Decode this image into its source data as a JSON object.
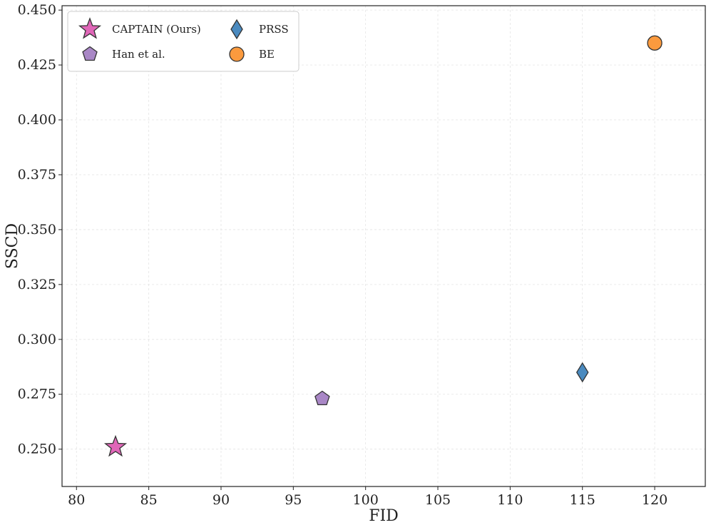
{
  "chart_data": {
    "type": "scatter",
    "title": "",
    "xlabel": "FID",
    "ylabel": "SSCD",
    "xlim": [
      79,
      123.5
    ],
    "ylim": [
      0.233,
      0.452
    ],
    "xticks": [
      80,
      85,
      90,
      95,
      100,
      105,
      110,
      115,
      120
    ],
    "yticks": [
      0.25,
      0.275,
      0.3,
      0.325,
      0.35,
      0.375,
      0.4,
      0.425,
      0.45
    ],
    "ytick_labels": [
      "0.250",
      "0.275",
      "0.300",
      "0.325",
      "0.350",
      "0.375",
      "0.400",
      "0.425",
      "0.450"
    ],
    "grid": true,
    "legend_position": "top-left",
    "series": [
      {
        "name": "CAPTAIN (Ours)",
        "marker": "star",
        "color": "#e066b8",
        "x": 82.7,
        "y": 0.251
      },
      {
        "name": "Han et al.",
        "marker": "pentagon",
        "color": "#a987c6",
        "x": 97.0,
        "y": 0.273
      },
      {
        "name": "PRSS",
        "marker": "diamond",
        "color": "#4a8abf",
        "x": 115.0,
        "y": 0.285
      },
      {
        "name": "BE",
        "marker": "circle",
        "color": "#fb9a3e",
        "x": 120.0,
        "y": 0.435
      }
    ]
  }
}
